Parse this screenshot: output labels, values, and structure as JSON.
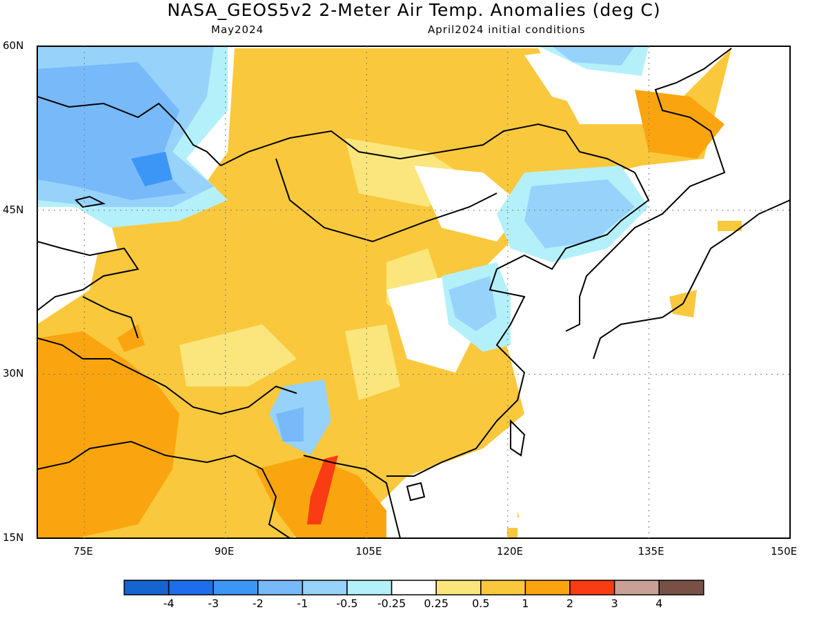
{
  "title": "NASA_GEOS5v2 2-Meter Air Temp. Anomalies (deg C)",
  "valid_month": "May2024",
  "init_label": "April2024 initial conditions",
  "map": {
    "lon_range": [
      70,
      150
    ],
    "lat_range": [
      15,
      60
    ],
    "lat_labels": [
      "60N",
      "45N",
      "30N",
      "15N"
    ],
    "lon_labels": [
      "75E",
      "90E",
      "105E",
      "120E",
      "135E",
      "150E"
    ],
    "gridlines": "dotted"
  },
  "colorbar": {
    "colors": [
      "#1464d2",
      "#1e6eeb",
      "#3c96f5",
      "#78b9fa",
      "#96d2fa",
      "#b4f0fa",
      "#ffffff",
      "#fae67d",
      "#fac83c",
      "#faa50f",
      "#fa3c14",
      "#c8a096",
      "#785046"
    ],
    "labels": [
      "-4",
      "-3",
      "-2",
      "-1",
      "-0.5",
      "-0.25",
      "0.25",
      "0.5",
      "1",
      "2",
      "3",
      "4"
    ]
  }
}
